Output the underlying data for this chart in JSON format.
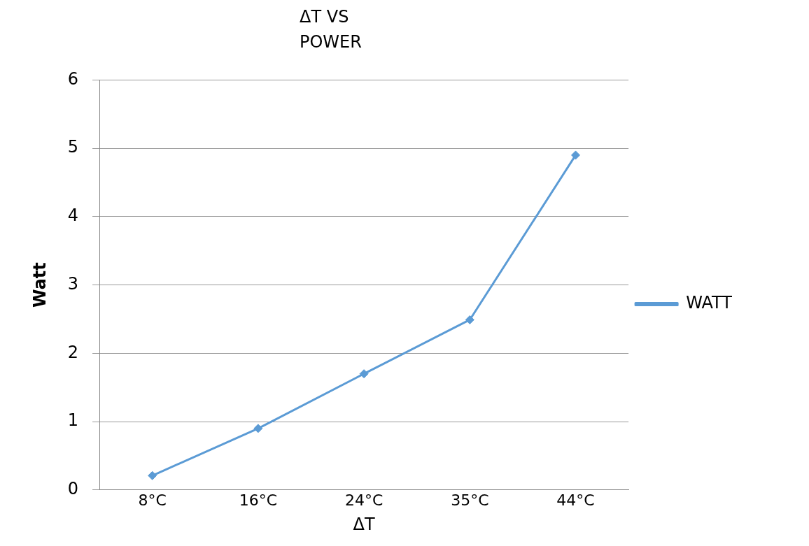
{
  "chart_data": {
    "type": "line",
    "title": "ΔT VS POWER",
    "xlabel": "ΔT",
    "ylabel": "Watt",
    "categories": [
      "8°C",
      "16°C",
      "24°C",
      "35°C",
      "44°C"
    ],
    "series": [
      {
        "name": "WATT",
        "color": "#5b9bd5",
        "values": [
          0.21,
          0.9,
          1.7,
          2.49,
          4.9
        ]
      }
    ],
    "ylim": [
      0,
      6
    ],
    "yticks": [
      0,
      1,
      2,
      3,
      4,
      5,
      6
    ],
    "grid": "y",
    "legend": "right",
    "marker": "diamond",
    "line_style": "solid"
  }
}
